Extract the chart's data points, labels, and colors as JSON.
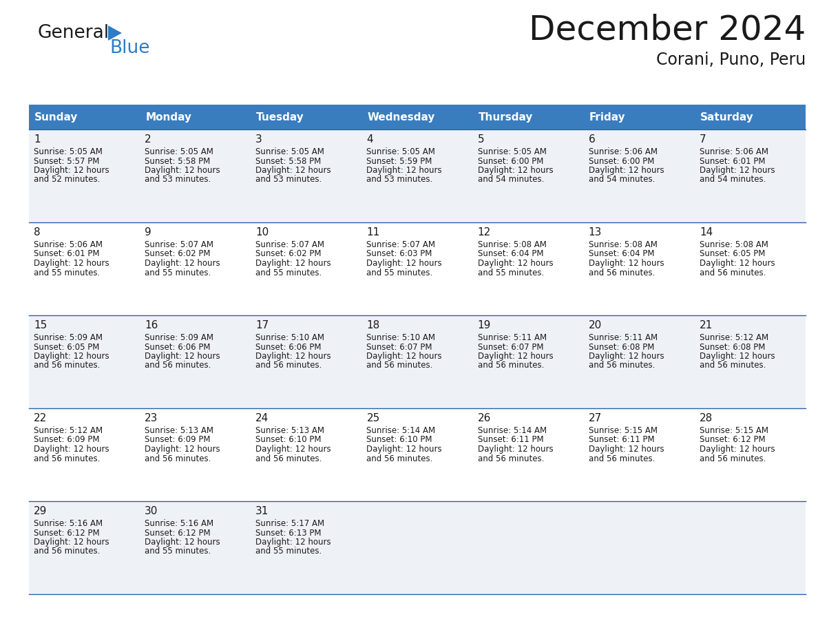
{
  "title": "December 2024",
  "subtitle": "Corani, Puno, Peru",
  "header_bg": "#3a7dbf",
  "header_text": "#ffffff",
  "cell_bg_odd": "#eef2f7",
  "cell_bg_even": "#ffffff",
  "border_color": "#2d5fa6",
  "text_color": "#1a1a1a",
  "days_of_week": [
    "Sunday",
    "Monday",
    "Tuesday",
    "Wednesday",
    "Thursday",
    "Friday",
    "Saturday"
  ],
  "calendar": [
    [
      {
        "day": "1",
        "sunrise": "5:05 AM",
        "sunset": "5:57 PM",
        "daylight_line1": "12 hours",
        "daylight_line2": "and 52 minutes."
      },
      {
        "day": "2",
        "sunrise": "5:05 AM",
        "sunset": "5:58 PM",
        "daylight_line1": "12 hours",
        "daylight_line2": "and 53 minutes."
      },
      {
        "day": "3",
        "sunrise": "5:05 AM",
        "sunset": "5:58 PM",
        "daylight_line1": "12 hours",
        "daylight_line2": "and 53 minutes."
      },
      {
        "day": "4",
        "sunrise": "5:05 AM",
        "sunset": "5:59 PM",
        "daylight_line1": "12 hours",
        "daylight_line2": "and 53 minutes."
      },
      {
        "day": "5",
        "sunrise": "5:05 AM",
        "sunset": "6:00 PM",
        "daylight_line1": "12 hours",
        "daylight_line2": "and 54 minutes."
      },
      {
        "day": "6",
        "sunrise": "5:06 AM",
        "sunset": "6:00 PM",
        "daylight_line1": "12 hours",
        "daylight_line2": "and 54 minutes."
      },
      {
        "day": "7",
        "sunrise": "5:06 AM",
        "sunset": "6:01 PM",
        "daylight_line1": "12 hours",
        "daylight_line2": "and 54 minutes."
      }
    ],
    [
      {
        "day": "8",
        "sunrise": "5:06 AM",
        "sunset": "6:01 PM",
        "daylight_line1": "12 hours",
        "daylight_line2": "and 55 minutes."
      },
      {
        "day": "9",
        "sunrise": "5:07 AM",
        "sunset": "6:02 PM",
        "daylight_line1": "12 hours",
        "daylight_line2": "and 55 minutes."
      },
      {
        "day": "10",
        "sunrise": "5:07 AM",
        "sunset": "6:02 PM",
        "daylight_line1": "12 hours",
        "daylight_line2": "and 55 minutes."
      },
      {
        "day": "11",
        "sunrise": "5:07 AM",
        "sunset": "6:03 PM",
        "daylight_line1": "12 hours",
        "daylight_line2": "and 55 minutes."
      },
      {
        "day": "12",
        "sunrise": "5:08 AM",
        "sunset": "6:04 PM",
        "daylight_line1": "12 hours",
        "daylight_line2": "and 55 minutes."
      },
      {
        "day": "13",
        "sunrise": "5:08 AM",
        "sunset": "6:04 PM",
        "daylight_line1": "12 hours",
        "daylight_line2": "and 56 minutes."
      },
      {
        "day": "14",
        "sunrise": "5:08 AM",
        "sunset": "6:05 PM",
        "daylight_line1": "12 hours",
        "daylight_line2": "and 56 minutes."
      }
    ],
    [
      {
        "day": "15",
        "sunrise": "5:09 AM",
        "sunset": "6:05 PM",
        "daylight_line1": "12 hours",
        "daylight_line2": "and 56 minutes."
      },
      {
        "day": "16",
        "sunrise": "5:09 AM",
        "sunset": "6:06 PM",
        "daylight_line1": "12 hours",
        "daylight_line2": "and 56 minutes."
      },
      {
        "day": "17",
        "sunrise": "5:10 AM",
        "sunset": "6:06 PM",
        "daylight_line1": "12 hours",
        "daylight_line2": "and 56 minutes."
      },
      {
        "day": "18",
        "sunrise": "5:10 AM",
        "sunset": "6:07 PM",
        "daylight_line1": "12 hours",
        "daylight_line2": "and 56 minutes."
      },
      {
        "day": "19",
        "sunrise": "5:11 AM",
        "sunset": "6:07 PM",
        "daylight_line1": "12 hours",
        "daylight_line2": "and 56 minutes."
      },
      {
        "day": "20",
        "sunrise": "5:11 AM",
        "sunset": "6:08 PM",
        "daylight_line1": "12 hours",
        "daylight_line2": "and 56 minutes."
      },
      {
        "day": "21",
        "sunrise": "5:12 AM",
        "sunset": "6:08 PM",
        "daylight_line1": "12 hours",
        "daylight_line2": "and 56 minutes."
      }
    ],
    [
      {
        "day": "22",
        "sunrise": "5:12 AM",
        "sunset": "6:09 PM",
        "daylight_line1": "12 hours",
        "daylight_line2": "and 56 minutes."
      },
      {
        "day": "23",
        "sunrise": "5:13 AM",
        "sunset": "6:09 PM",
        "daylight_line1": "12 hours",
        "daylight_line2": "and 56 minutes."
      },
      {
        "day": "24",
        "sunrise": "5:13 AM",
        "sunset": "6:10 PM",
        "daylight_line1": "12 hours",
        "daylight_line2": "and 56 minutes."
      },
      {
        "day": "25",
        "sunrise": "5:14 AM",
        "sunset": "6:10 PM",
        "daylight_line1": "12 hours",
        "daylight_line2": "and 56 minutes."
      },
      {
        "day": "26",
        "sunrise": "5:14 AM",
        "sunset": "6:11 PM",
        "daylight_line1": "12 hours",
        "daylight_line2": "and 56 minutes."
      },
      {
        "day": "27",
        "sunrise": "5:15 AM",
        "sunset": "6:11 PM",
        "daylight_line1": "12 hours",
        "daylight_line2": "and 56 minutes."
      },
      {
        "day": "28",
        "sunrise": "5:15 AM",
        "sunset": "6:12 PM",
        "daylight_line1": "12 hours",
        "daylight_line2": "and 56 minutes."
      }
    ],
    [
      {
        "day": "29",
        "sunrise": "5:16 AM",
        "sunset": "6:12 PM",
        "daylight_line1": "12 hours",
        "daylight_line2": "and 56 minutes."
      },
      {
        "day": "30",
        "sunrise": "5:16 AM",
        "sunset": "6:12 PM",
        "daylight_line1": "12 hours",
        "daylight_line2": "and 55 minutes."
      },
      {
        "day": "31",
        "sunrise": "5:17 AM",
        "sunset": "6:13 PM",
        "daylight_line1": "12 hours",
        "daylight_line2": "and 55 minutes."
      },
      null,
      null,
      null,
      null
    ]
  ],
  "logo_text1": "General",
  "logo_text2": "Blue",
  "logo_color1": "#1a1a1a",
  "logo_color2": "#2e7cc4",
  "logo_triangle_color": "#2e7cc4",
  "title_fontsize": 36,
  "subtitle_fontsize": 17,
  "header_fontsize": 11,
  "day_num_fontsize": 11,
  "cell_fontsize": 8.5
}
